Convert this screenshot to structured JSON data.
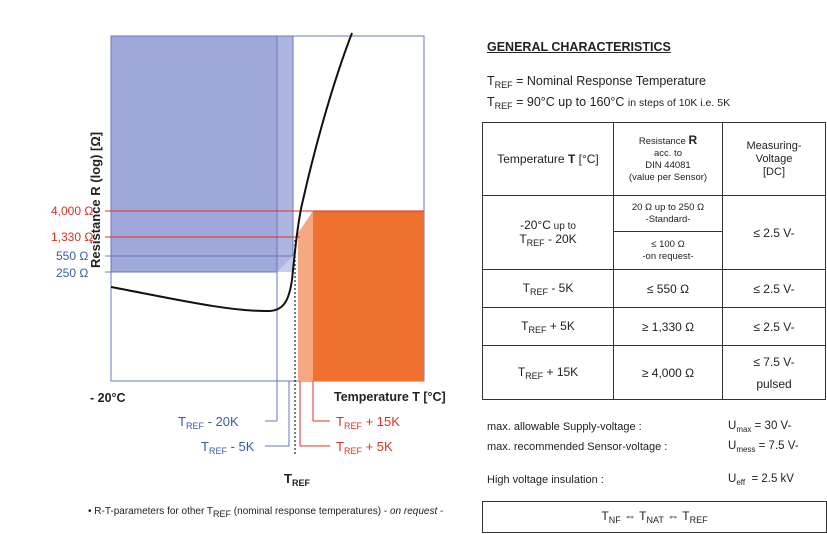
{
  "diagram": {
    "y_axis_label": "Resistance R (log) [Ω]",
    "x_axis_label": "Temperature T [°C]",
    "x_start_label": "- 20°C",
    "resistance_ticks": [
      {
        "label": "4,000 Ω",
        "color": "#e03020"
      },
      {
        "label": "1,330 Ω",
        "color": "#e03020"
      },
      {
        "label": "550 Ω",
        "color": "#3a5aa8"
      },
      {
        "label": "250 Ω",
        "color": "#3a5aa8"
      }
    ],
    "callouts": {
      "tref_minus_20k": {
        "base": "T",
        "sub": "REF",
        "rest": " - 20K"
      },
      "tref_minus_5k": {
        "base": "T",
        "sub": "REF",
        "rest": " - 5K"
      },
      "tref_plus_15k": {
        "base": "T",
        "sub": "REF",
        "rest": " + 15K"
      },
      "tref_plus_5k": {
        "base": "T",
        "sub": "REF",
        "rest": " + 5K"
      },
      "tref": {
        "base": "T",
        "sub": "REF"
      }
    },
    "colors": {
      "blue_region": "#9fa8d8",
      "orange_region": "#f07030",
      "red": "#e03020",
      "blue": "#3a5aa8"
    }
  },
  "footnote": {
    "pre": "• R-T-parameters for other T",
    "sub": "REF",
    "mid": " (nominal response temperatures) - ",
    "em": "on request",
    "post": " -"
  },
  "general": {
    "title": "GENERAL CHARACTERISTICS",
    "line1": {
      "t": "T",
      "sub": "REF",
      "rest": " = Nominal Response Temperature"
    },
    "line2": {
      "t": "T",
      "sub": "REF",
      "rest": " = 90°C up to 160°C ",
      "small": "in steps of 10K i.e. 5K"
    }
  },
  "table": {
    "headers": {
      "temp_pre": "Temperature ",
      "temp_bold": "T",
      "temp_post": " [°C]",
      "res_pre": "Resistance ",
      "res_bold": "R",
      "res_line2": "acc. to",
      "res_line3": "DIN 44081",
      "res_line4": "(value per Sensor)",
      "volt_line1": "Measuring-",
      "volt_line2": "Voltage",
      "volt_line3": "[DC]"
    },
    "row1": {
      "temp_line1": "-20°C",
      "temp_small": " up to",
      "temp_t": "T",
      "temp_sub": "REF",
      "temp_rest": " - 20K",
      "res_a1": "20 Ω up to 250 Ω",
      "res_a2": "-Standard-",
      "res_b1": "≤ 100 Ω",
      "res_b2": "-on request-",
      "volt": "≤ 2.5 V-"
    },
    "rows": [
      {
        "t": "T",
        "sub": "REF",
        "rest": " - 5K",
        "res": "≤ 550 Ω",
        "volt": "≤ 2.5 V-"
      },
      {
        "t": "T",
        "sub": "REF",
        "rest": " + 5K",
        "res": "≥ 1,330 Ω",
        "volt": "≤ 2.5 V-"
      },
      {
        "t": "T",
        "sub": "REF",
        "rest": " + 15K",
        "res": "≥ 4,000 Ω",
        "volt": "≤ 7.5 V-",
        "volt2": "pulsed"
      }
    ]
  },
  "specs": {
    "supply_label": "max. allowable Supply-voltage :",
    "supply_sym": "U",
    "supply_sub": "max",
    "supply_val": " = 30 V-",
    "sensor_label": "max. recommended Sensor-voltage :",
    "sensor_sym": "U",
    "sensor_sub": "mess",
    "sensor_val": " = 7.5 V-",
    "insul_label": "High voltage insulation :",
    "insul_sym": "U",
    "insul_sub": "eff",
    "insul_val": "  = 2.5 kV"
  },
  "bottom": {
    "t1": "T",
    "s1": "NF",
    "arr1": " ⇔ ",
    "t2": "T",
    "s2": "NAT",
    "arr2": " ⇔ ",
    "t3": "T",
    "s3": "REF"
  }
}
